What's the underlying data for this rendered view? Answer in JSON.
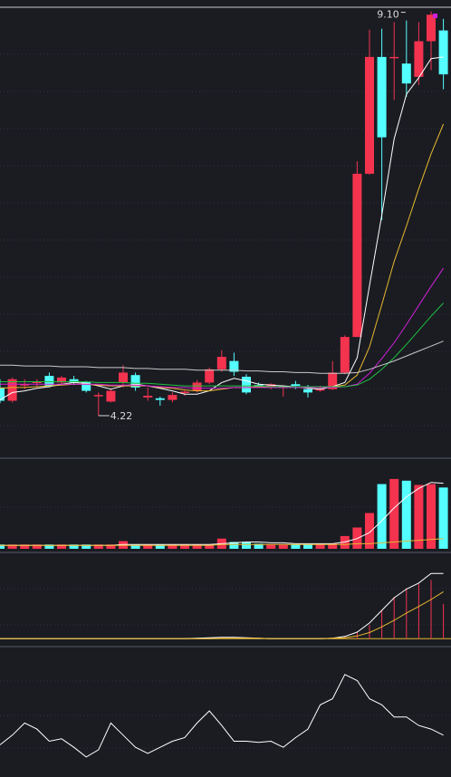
{
  "colors": {
    "background": "#1a1c22",
    "grid": "#3a3e4a",
    "divider": "#555a66",
    "up": "#f4334f",
    "down": "#54ffff",
    "ma5": "#ffffff",
    "ma10": "#e8b830",
    "ma20": "#d020d8",
    "ma30": "#20c040",
    "ma60": "#c8c8c8",
    "label": "#d8d8d8",
    "marker": "#d020d8"
  },
  "chart_data": [
    {
      "type": "candlestick",
      "panel": "price",
      "ylim": [
        3.75,
        9.15
      ],
      "grid": true,
      "annotations": [
        {
          "text": "9.10",
          "index": 33,
          "value": 9.1
        },
        {
          "text": "4.22",
          "index": 8,
          "value": 4.22
        }
      ],
      "candles": [
        {
          "o": 4.56,
          "h": 4.66,
          "l": 4.37,
          "c": 4.4
        },
        {
          "o": 4.4,
          "h": 4.68,
          "l": 4.38,
          "c": 4.66
        },
        {
          "o": 4.6,
          "h": 4.66,
          "l": 4.54,
          "c": 4.6
        },
        {
          "o": 4.62,
          "h": 4.66,
          "l": 4.57,
          "c": 4.63
        },
        {
          "o": 4.7,
          "h": 4.74,
          "l": 4.56,
          "c": 4.58
        },
        {
          "o": 4.62,
          "h": 4.7,
          "l": 4.6,
          "c": 4.68
        },
        {
          "o": 4.66,
          "h": 4.7,
          "l": 4.59,
          "c": 4.62
        },
        {
          "o": 4.63,
          "h": 4.64,
          "l": 4.5,
          "c": 4.52
        },
        {
          "o": 4.47,
          "h": 4.5,
          "l": 4.22,
          "c": 4.47
        },
        {
          "o": 4.39,
          "h": 4.55,
          "l": 4.38,
          "c": 4.52
        },
        {
          "o": 4.62,
          "h": 4.83,
          "l": 4.56,
          "c": 4.74
        },
        {
          "o": 4.71,
          "h": 4.74,
          "l": 4.52,
          "c": 4.56
        },
        {
          "o": 4.44,
          "h": 4.56,
          "l": 4.4,
          "c": 4.46
        },
        {
          "o": 4.43,
          "h": 4.45,
          "l": 4.34,
          "c": 4.41
        },
        {
          "o": 4.41,
          "h": 4.5,
          "l": 4.38,
          "c": 4.47
        },
        {
          "o": 4.5,
          "h": 4.53,
          "l": 4.46,
          "c": 4.51
        },
        {
          "o": 4.52,
          "h": 4.65,
          "l": 4.5,
          "c": 4.62
        },
        {
          "o": 4.62,
          "h": 4.8,
          "l": 4.6,
          "c": 4.78
        },
        {
          "o": 4.78,
          "h": 5.01,
          "l": 4.75,
          "c": 4.93
        },
        {
          "o": 4.88,
          "h": 4.98,
          "l": 4.7,
          "c": 4.75
        },
        {
          "o": 4.69,
          "h": 4.72,
          "l": 4.48,
          "c": 4.5
        },
        {
          "o": 4.59,
          "h": 4.62,
          "l": 4.56,
          "c": 4.57
        },
        {
          "o": 4.57,
          "h": 4.61,
          "l": 4.54,
          "c": 4.6
        },
        {
          "o": 4.56,
          "h": 4.59,
          "l": 4.45,
          "c": 4.57
        },
        {
          "o": 4.6,
          "h": 4.64,
          "l": 4.54,
          "c": 4.58
        },
        {
          "o": 4.54,
          "h": 4.59,
          "l": 4.44,
          "c": 4.5
        },
        {
          "o": 4.53,
          "h": 4.58,
          "l": 4.51,
          "c": 4.54
        },
        {
          "o": 4.54,
          "h": 4.88,
          "l": 4.53,
          "c": 4.74
        },
        {
          "o": 4.74,
          "h": 5.19,
          "l": 4.72,
          "c": 5.17
        },
        {
          "o": 5.17,
          "h": 7.29,
          "l": 5.17,
          "c": 7.14
        },
        {
          "o": 7.14,
          "h": 8.88,
          "l": 7.13,
          "c": 8.55
        },
        {
          "o": 8.55,
          "h": 8.89,
          "l": 6.58,
          "c": 7.58
        },
        {
          "o": 8.55,
          "h": 8.97,
          "l": 8.03,
          "c": 8.55
        },
        {
          "o": 8.47,
          "h": 8.99,
          "l": 8.07,
          "c": 8.23
        },
        {
          "o": 8.31,
          "h": 8.97,
          "l": 8.21,
          "c": 8.74
        },
        {
          "o": 8.74,
          "h": 9.1,
          "l": 8.39,
          "c": 9.06
        },
        {
          "o": 8.87,
          "h": 9.01,
          "l": 8.16,
          "c": 8.34
        }
      ],
      "series": [
        {
          "name": "",
          "color": "#ffffff",
          "values": [
            4.41,
            4.5,
            4.52,
            4.55,
            4.57,
            4.6,
            4.62,
            4.61,
            4.58,
            4.54,
            4.58,
            4.6,
            4.58,
            4.55,
            4.52,
            4.48,
            4.48,
            4.52,
            4.62,
            4.67,
            4.64,
            4.6,
            4.59,
            4.58,
            4.57,
            4.55,
            4.54,
            4.57,
            4.62,
            4.92,
            5.79,
            6.64,
            7.56,
            8.1,
            8.3,
            8.53,
            8.55
          ]
        },
        {
          "name": "",
          "color": "#e8b830",
          "values": [
            4.55,
            4.56,
            4.56,
            4.57,
            4.58,
            4.59,
            4.6,
            4.6,
            4.59,
            4.58,
            4.58,
            4.58,
            4.58,
            4.56,
            4.55,
            4.53,
            4.52,
            4.52,
            4.54,
            4.56,
            4.56,
            4.57,
            4.57,
            4.57,
            4.57,
            4.56,
            4.56,
            4.57,
            4.59,
            4.71,
            5.05,
            5.56,
            6.08,
            6.51,
            6.96,
            7.38,
            7.74
          ]
        },
        {
          "name": "",
          "color": "#d020d8",
          "values": [
            4.6,
            4.6,
            4.6,
            4.6,
            4.6,
            4.6,
            4.6,
            4.6,
            4.6,
            4.59,
            4.59,
            4.59,
            4.58,
            4.57,
            4.56,
            4.56,
            4.55,
            4.55,
            4.55,
            4.56,
            4.56,
            4.56,
            4.56,
            4.56,
            4.56,
            4.56,
            4.56,
            4.56,
            4.57,
            4.6,
            4.73,
            4.91,
            5.1,
            5.32,
            5.55,
            5.78,
            6.0
          ]
        },
        {
          "name": "",
          "color": "#20c040",
          "values": [
            4.63,
            4.63,
            4.63,
            4.63,
            4.63,
            4.63,
            4.63,
            4.63,
            4.62,
            4.62,
            4.62,
            4.61,
            4.61,
            4.6,
            4.59,
            4.58,
            4.58,
            4.58,
            4.58,
            4.58,
            4.58,
            4.58,
            4.57,
            4.57,
            4.57,
            4.57,
            4.57,
            4.57,
            4.57,
            4.59,
            4.66,
            4.78,
            4.92,
            5.08,
            5.25,
            5.42,
            5.58
          ]
        },
        {
          "name": "",
          "color": "#c8c8c8",
          "values": [
            4.83,
            4.83,
            4.82,
            4.82,
            4.82,
            4.81,
            4.81,
            4.81,
            4.8,
            4.8,
            4.8,
            4.79,
            4.79,
            4.78,
            4.78,
            4.78,
            4.77,
            4.77,
            4.77,
            4.77,
            4.76,
            4.76,
            4.75,
            4.75,
            4.74,
            4.74,
            4.73,
            4.73,
            4.73,
            4.74,
            4.78,
            4.83,
            4.88,
            4.94,
            5.0,
            5.06,
            5.12
          ]
        }
      ]
    },
    {
      "type": "bar",
      "panel": "volume",
      "ylim": [
        0,
        100
      ],
      "values": [
        5,
        5,
        5,
        5,
        5,
        5,
        5,
        5,
        5,
        5,
        9,
        5,
        5,
        5,
        5,
        5,
        5,
        5,
        12,
        8,
        8,
        6,
        5,
        5,
        5,
        5,
        5,
        6,
        15,
        25,
        42,
        76,
        82,
        80,
        75,
        76,
        72
      ],
      "series": [
        {
          "name": "",
          "color": "#ffffff",
          "values": [
            4,
            4,
            4,
            4,
            4,
            4,
            4,
            4,
            4,
            4,
            5,
            5,
            5,
            5,
            5,
            5,
            5,
            5,
            6,
            7,
            8,
            8,
            7,
            7,
            6,
            6,
            6,
            6,
            8,
            12,
            19,
            33,
            48,
            61,
            71,
            78,
            77
          ]
        },
        {
          "name": "",
          "color": "#e8b830",
          "values": [
            4,
            4,
            4,
            4,
            4,
            4,
            4,
            4,
            4,
            4,
            4,
            4,
            4,
            4,
            4,
            4,
            4,
            4,
            5,
            5,
            5,
            5,
            5,
            5,
            5,
            5,
            5,
            5,
            5,
            6,
            6,
            7,
            8,
            9,
            10,
            11,
            12
          ]
        }
      ]
    },
    {
      "type": "bar",
      "panel": "indicator",
      "ylim": [
        -1,
        19
      ],
      "values": [
        0,
        0,
        0,
        0,
        0,
        0,
        0,
        0,
        0,
        0,
        0,
        0,
        0,
        0,
        0,
        0,
        0.2,
        0.3,
        0.4,
        0.4,
        0.3,
        0.1,
        0,
        0,
        0,
        0,
        0,
        0.2,
        0.6,
        1.4,
        3.2,
        6.5,
        9.6,
        11.6,
        12.6,
        13.5,
        8.0
      ],
      "series": [
        {
          "name": "",
          "color": "#ffffff",
          "values": [
            0,
            0,
            0,
            0,
            0,
            0,
            0,
            0,
            0,
            0,
            0,
            0,
            0,
            0,
            0,
            0,
            0.1,
            0.2,
            0.3,
            0.3,
            0.2,
            0.1,
            0,
            0,
            0,
            0,
            0,
            0.1,
            0.5,
            1.5,
            3.6,
            6.5,
            9.4,
            11.4,
            12.8,
            15.0,
            15.0
          ]
        },
        {
          "name": "",
          "color": "#e8b830",
          "values": [
            0,
            0,
            0,
            0,
            0,
            0,
            0,
            0,
            0,
            0,
            0,
            0,
            0,
            0,
            0,
            0,
            0,
            0,
            0.1,
            0.1,
            0.1,
            0.1,
            0,
            0,
            0,
            0,
            0,
            0.1,
            0.2,
            0.6,
            1.4,
            2.7,
            4.2,
            5.9,
            7.4,
            9.0,
            10.8
          ]
        }
      ]
    },
    {
      "type": "line",
      "panel": "oscillator",
      "ylim": [
        0,
        100
      ],
      "series": [
        {
          "name": "",
          "color": "#ffffff",
          "values": [
            22,
            30,
            40,
            35,
            25,
            27,
            20,
            12,
            18,
            40,
            30,
            20,
            15,
            20,
            25,
            28,
            40,
            50,
            38,
            25,
            25,
            24,
            25,
            20,
            28,
            35,
            55,
            60,
            80,
            75,
            60,
            55,
            45,
            45,
            38,
            35,
            30
          ]
        }
      ]
    }
  ]
}
